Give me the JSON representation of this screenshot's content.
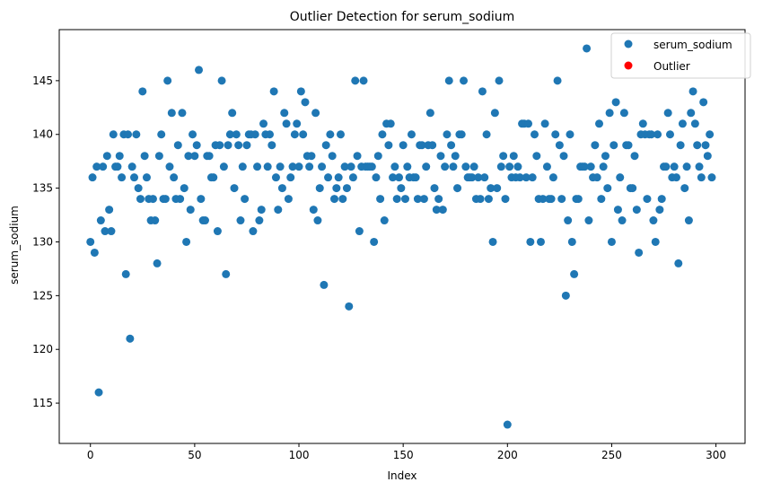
{
  "chart_data": {
    "type": "scatter",
    "title": "Outlier Detection for serum_sodium",
    "xlabel": "Index",
    "ylabel": "serum_sodium",
    "xlim": [
      -14.95,
      313.95
    ],
    "ylim": [
      111.25,
      149.75
    ],
    "xticks": [
      0,
      50,
      100,
      150,
      200,
      250,
      300
    ],
    "yticks": [
      115,
      120,
      125,
      130,
      135,
      140,
      145
    ],
    "grid": false,
    "legend_position": "top-right",
    "series": [
      {
        "name": "serum_sodium",
        "color": "#1f77b4",
        "x": [
          0,
          1,
          2,
          3,
          4,
          5,
          6,
          7,
          8,
          9,
          10,
          11,
          12,
          13,
          14,
          15,
          16,
          17,
          18,
          19,
          20,
          21,
          22,
          23,
          24,
          25,
          26,
          27,
          28,
          29,
          30,
          31,
          32,
          33,
          34,
          35,
          36,
          37,
          38,
          39,
          40,
          41,
          42,
          43,
          44,
          45,
          46,
          47,
          48,
          49,
          50,
          51,
          52,
          53,
          54,
          55,
          56,
          57,
          58,
          59,
          60,
          61,
          62,
          63,
          64,
          65,
          66,
          67,
          68,
          69,
          70,
          71,
          72,
          73,
          74,
          75,
          76,
          77,
          78,
          79,
          80,
          81,
          82,
          83,
          84,
          85,
          86,
          87,
          88,
          89,
          90,
          91,
          92,
          93,
          94,
          95,
          96,
          97,
          98,
          99,
          100,
          101,
          102,
          103,
          104,
          105,
          106,
          107,
          108,
          109,
          110,
          111,
          112,
          113,
          114,
          115,
          116,
          117,
          118,
          119,
          120,
          121,
          122,
          123,
          124,
          125,
          126,
          127,
          128,
          129,
          130,
          131,
          132,
          133,
          134,
          135,
          136,
          137,
          138,
          139,
          140,
          141,
          142,
          143,
          144,
          145,
          146,
          147,
          148,
          149,
          150,
          151,
          152,
          153,
          154,
          155,
          156,
          157,
          158,
          159,
          160,
          161,
          162,
          163,
          164,
          165,
          166,
          167,
          168,
          169,
          170,
          171,
          172,
          173,
          174,
          175,
          176,
          177,
          178,
          179,
          180,
          181,
          182,
          183,
          184,
          185,
          186,
          187,
          188,
          189,
          190,
          191,
          192,
          193,
          194,
          195,
          196,
          197,
          198,
          199,
          200,
          201,
          202,
          203,
          204,
          205,
          206,
          207,
          208,
          209,
          210,
          211,
          212,
          213,
          214,
          215,
          216,
          217,
          218,
          219,
          220,
          221,
          222,
          223,
          224,
          225,
          226,
          227,
          228,
          229,
          230,
          231,
          232,
          233,
          234,
          235,
          236,
          237,
          238,
          239,
          240,
          241,
          242,
          243,
          244,
          245,
          246,
          247,
          248,
          249,
          250,
          251,
          252,
          253,
          254,
          255,
          256,
          257,
          258,
          259,
          260,
          261,
          262,
          263,
          264,
          265,
          266,
          267,
          268,
          269,
          270,
          271,
          272,
          273,
          274,
          275,
          276,
          277,
          278,
          279,
          280,
          281,
          282,
          283,
          284,
          285,
          286,
          287,
          288,
          289,
          290,
          291,
          292,
          293,
          294,
          295,
          296,
          297,
          298
        ],
        "y": [
          130,
          136,
          129,
          137,
          116,
          132,
          137,
          131,
          138,
          133,
          131,
          140,
          137,
          137,
          138,
          136,
          140,
          127,
          140,
          121,
          137,
          136,
          140,
          135,
          134,
          144,
          138,
          136,
          134,
          132,
          134,
          132,
          128,
          138,
          140,
          134,
          134,
          145,
          137,
          142,
          136,
          134,
          139,
          134,
          142,
          135,
          130,
          138,
          133,
          140,
          138,
          139,
          146,
          134,
          132,
          132,
          138,
          138,
          136,
          136,
          139,
          131,
          139,
          145,
          137,
          127,
          139,
          140,
          142,
          135,
          140,
          139,
          132,
          137,
          134,
          139,
          140,
          140,
          131,
          140,
          137,
          132,
          133,
          141,
          140,
          137,
          140,
          139,
          144,
          136,
          133,
          137,
          135,
          142,
          141,
          134,
          136,
          137,
          140,
          141,
          137,
          144,
          140,
          143,
          138,
          137,
          138,
          133,
          142,
          132,
          135,
          137,
          126,
          139,
          136,
          140,
          138,
          134,
          135,
          136,
          140,
          134,
          137,
          135,
          124,
          137,
          136,
          145,
          138,
          131,
          137,
          145,
          137,
          137,
          137,
          137,
          130,
          136,
          138,
          134,
          140,
          132,
          141,
          139,
          141,
          136,
          137,
          134,
          136,
          135,
          139,
          134,
          137,
          136,
          140,
          136,
          136,
          134,
          139,
          139,
          134,
          137,
          139,
          142,
          139,
          135,
          133,
          134,
          138,
          133,
          137,
          140,
          145,
          139,
          137,
          138,
          135,
          140,
          140,
          145,
          137,
          136,
          136,
          136,
          137,
          134,
          136,
          134,
          144,
          136,
          140,
          134,
          135,
          130,
          142,
          135,
          145,
          137,
          138,
          134,
          113,
          137,
          136,
          138,
          136,
          137,
          136,
          141,
          141,
          136,
          141,
          130,
          136,
          140,
          138,
          134,
          130,
          134,
          141,
          137,
          134,
          134,
          136,
          140,
          145,
          139,
          134,
          138,
          125,
          132,
          140,
          130,
          127,
          134,
          134,
          137,
          137,
          137,
          148,
          132,
          137,
          136,
          139,
          136,
          141,
          134,
          137,
          138,
          135,
          142,
          130,
          139,
          143,
          133,
          136,
          132,
          142,
          139,
          139,
          135,
          135,
          138,
          133,
          129,
          140,
          141,
          140,
          134,
          140,
          140,
          132,
          130,
          140,
          133,
          134,
          137,
          137,
          142,
          140,
          136,
          137,
          136,
          128,
          139,
          141,
          135,
          137,
          132,
          142,
          144,
          141,
          139,
          137,
          136,
          143,
          139,
          138,
          140,
          136
        ]
      },
      {
        "name": "Outlier",
        "color": "#ff0000",
        "x": [],
        "y": []
      }
    ]
  }
}
